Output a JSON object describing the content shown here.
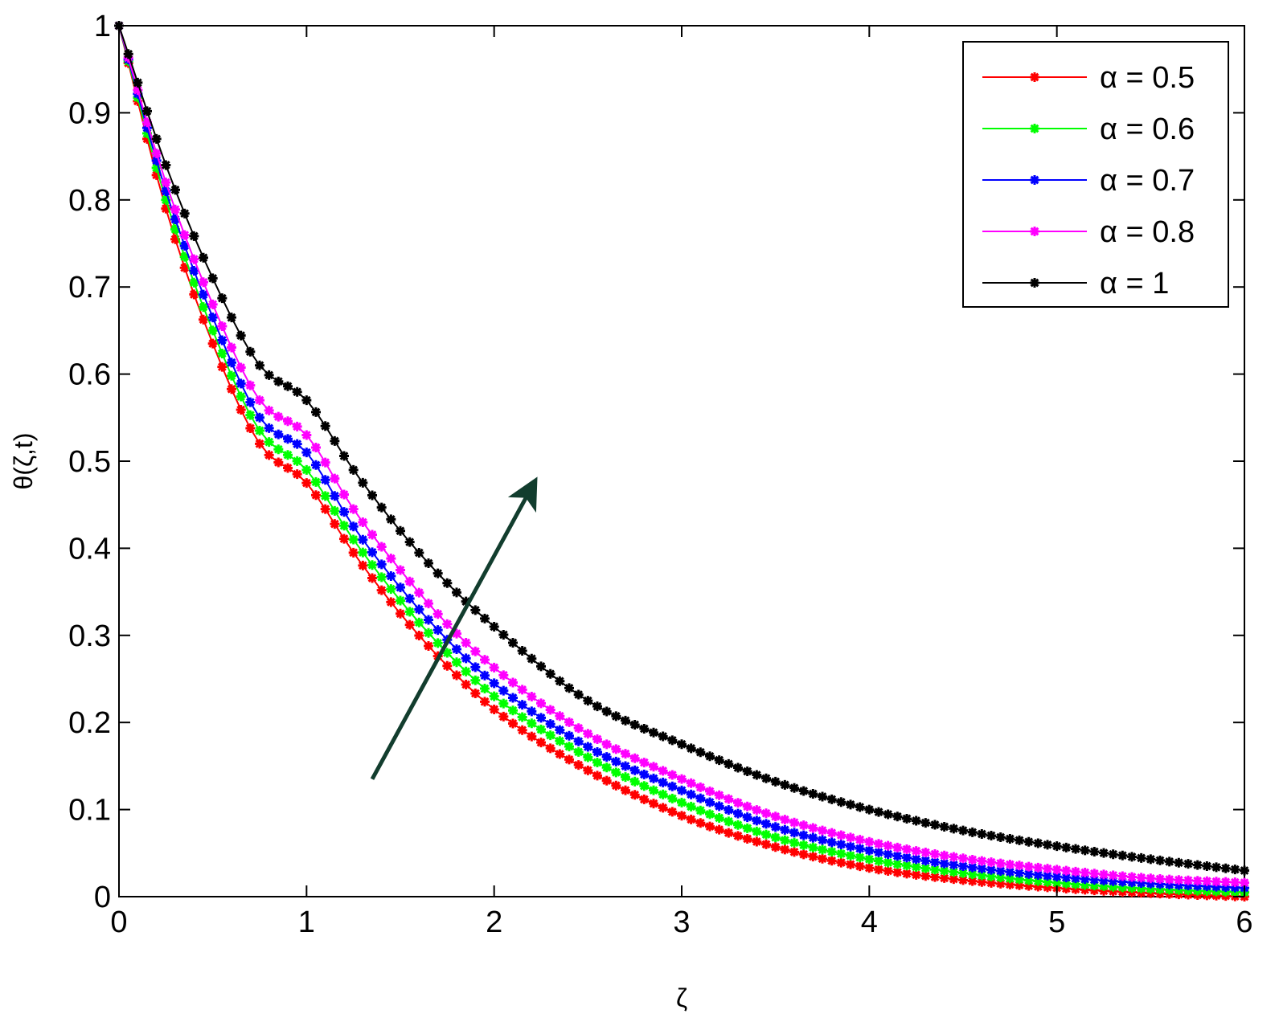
{
  "chart_data": {
    "type": "line",
    "xlabel": "ζ",
    "ylabel": "θ(ζ,t)",
    "xlim": [
      0,
      6
    ],
    "ylim": [
      0,
      1
    ],
    "x_ticks": [
      "0",
      "1",
      "2",
      "3",
      "4",
      "5",
      "6"
    ],
    "y_ticks": [
      "0",
      "0.1",
      "0.2",
      "0.3",
      "0.4",
      "0.5",
      "0.6",
      "0.7",
      "0.8",
      "0.9",
      "1"
    ],
    "grid": false,
    "legend_position": "top-right",
    "marker": "asterisk",
    "series": [
      {
        "name": "α = 0.5",
        "color": "#ff0000",
        "x": [
          0,
          0.25,
          0.5,
          0.75,
          1,
          1.25,
          1.5,
          1.75,
          2,
          2.5,
          3,
          3.5,
          4,
          4.5,
          5,
          5.5,
          6
        ],
        "y": [
          1.0,
          0.79,
          0.635,
          0.52,
          0.475,
          0.395,
          0.325,
          0.265,
          0.215,
          0.145,
          0.093,
          0.057,
          0.033,
          0.019,
          0.01,
          0.004,
          0.0
        ]
      },
      {
        "name": "α = 0.6",
        "color": "#00ff00",
        "x": [
          0,
          0.25,
          0.5,
          0.75,
          1,
          1.25,
          1.5,
          1.75,
          2,
          2.5,
          3,
          3.5,
          4,
          4.5,
          5,
          5.5,
          6
        ],
        "y": [
          1.0,
          0.8,
          0.65,
          0.535,
          0.49,
          0.41,
          0.34,
          0.28,
          0.23,
          0.16,
          0.108,
          0.068,
          0.043,
          0.027,
          0.016,
          0.009,
          0.005
        ]
      },
      {
        "name": "α = 0.7",
        "color": "#0000ff",
        "x": [
          0,
          0.25,
          0.5,
          0.75,
          1,
          1.25,
          1.5,
          1.75,
          2,
          2.5,
          3,
          3.5,
          4,
          4.5,
          5,
          5.5,
          6
        ],
        "y": [
          1.0,
          0.81,
          0.665,
          0.55,
          0.51,
          0.425,
          0.355,
          0.295,
          0.245,
          0.172,
          0.122,
          0.08,
          0.053,
          0.035,
          0.023,
          0.015,
          0.01
        ]
      },
      {
        "name": "α = 0.8",
        "color": "#ff00ff",
        "x": [
          0,
          0.25,
          0.5,
          0.75,
          1,
          1.25,
          1.5,
          1.75,
          2,
          2.5,
          3,
          3.5,
          4,
          4.5,
          5,
          5.5,
          6
        ],
        "y": [
          1.0,
          0.82,
          0.68,
          0.57,
          0.53,
          0.445,
          0.375,
          0.313,
          0.263,
          0.187,
          0.135,
          0.092,
          0.063,
          0.044,
          0.031,
          0.021,
          0.016
        ]
      },
      {
        "name": "α = 1",
        "color": "#000000",
        "x": [
          0,
          0.25,
          0.5,
          0.75,
          1,
          1.25,
          1.5,
          1.75,
          2,
          2.5,
          3,
          3.5,
          4,
          4.5,
          5,
          5.5,
          6
        ],
        "y": [
          1.0,
          0.84,
          0.71,
          0.61,
          0.57,
          0.49,
          0.42,
          0.36,
          0.31,
          0.225,
          0.175,
          0.132,
          0.1,
          0.076,
          0.058,
          0.043,
          0.03
        ]
      }
    ],
    "annotations": [
      {
        "type": "arrow",
        "color": "#123d2e",
        "from": [
          1.35,
          0.135
        ],
        "to": [
          2.2,
          0.47
        ]
      }
    ]
  }
}
